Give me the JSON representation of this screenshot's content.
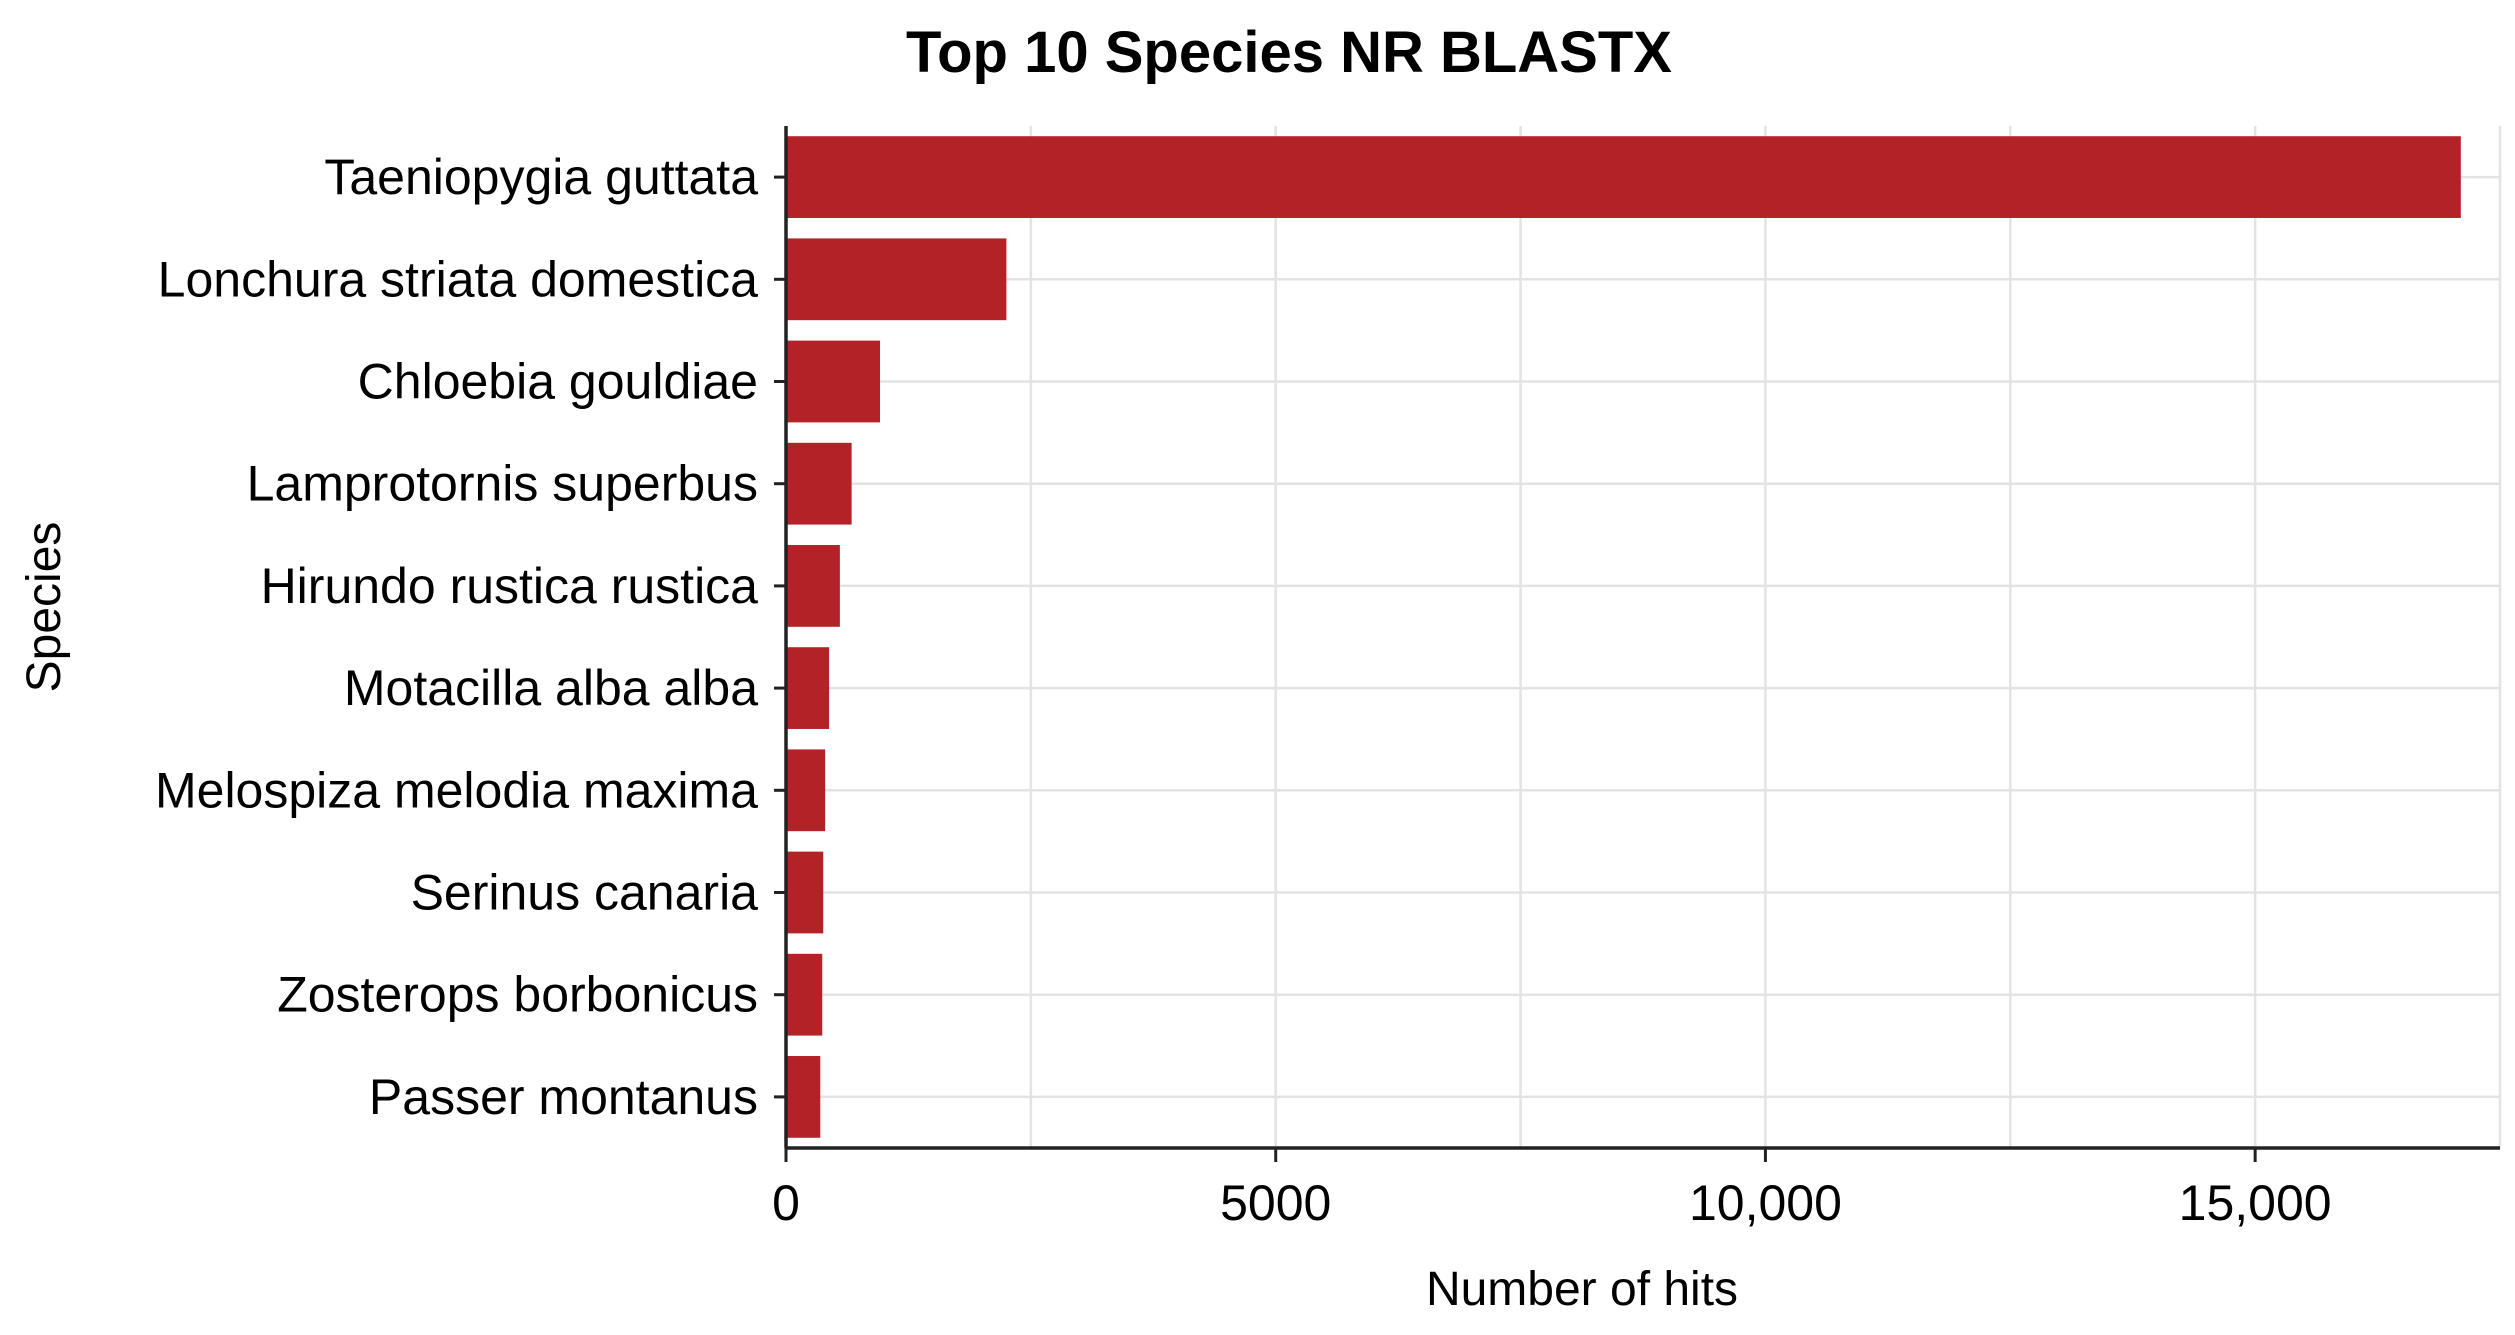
{
  "chart_data": {
    "type": "bar",
    "orientation": "horizontal",
    "title": "Top 10 Species NR BLASTX",
    "xlabel": "Number of hits",
    "ylabel": "Species",
    "categories": [
      "Taeniopygia guttata",
      "Lonchura striata domestica",
      "Chloebia gouldiae",
      "Lamprotornis superbus",
      "Hirundo rustica rustica",
      "Motacilla alba alba",
      "Melospiza melodia maxima",
      "Serinus canaria",
      "Zosterops borbonicus",
      "Passer montanus"
    ],
    "values": [
      17100,
      2250,
      960,
      670,
      550,
      440,
      400,
      380,
      370,
      350
    ],
    "xlim": [
      0,
      17500
    ],
    "xticks": [
      0,
      5000,
      10000,
      15000
    ],
    "xtick_labels": [
      "0",
      "5000",
      "10,000",
      "15,000"
    ],
    "grid": true,
    "bar_color": "#b22226",
    "grid_color": "#e3e3e3"
  }
}
